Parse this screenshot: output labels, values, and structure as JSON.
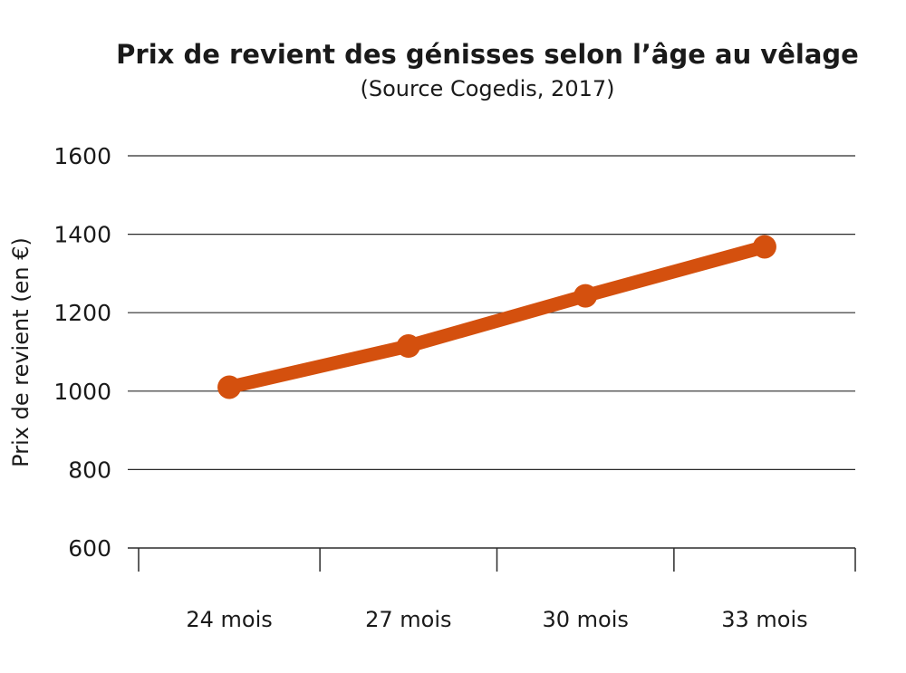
{
  "chart_data": {
    "type": "line",
    "title": "Prix de revient des génisses selon l’âge au vêlage",
    "subtitle": "(Source Cogedis, 2017)",
    "ylabel": "Prix de revient (en €)",
    "xlabel": "",
    "categories": [
      "24 mois",
      "27 mois",
      "30 mois",
      "33 mois"
    ],
    "series": [
      {
        "values": [
          1010,
          1115,
          1243,
          1368
        ]
      }
    ],
    "ylim": [
      600,
      1600
    ],
    "yticks": [
      600,
      800,
      1000,
      1200,
      1400,
      1600
    ],
    "grid": true,
    "color": "#d4500e"
  }
}
